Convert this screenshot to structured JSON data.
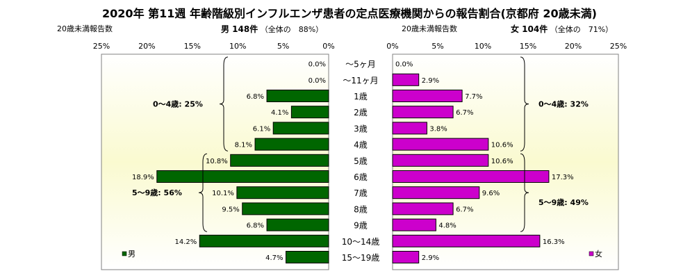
{
  "title": "2020年 第11週 年齢階級別インフルエンザ患者の定点医療機関からの報告割合(京都府 20歳未満)",
  "headers": {
    "male_left": "20歳未満報告数",
    "male_summary": "男 148件",
    "male_share": "（全体の　88%）",
    "female_left": "20歳未満報告数",
    "female_summary": "女 104件",
    "female_share": "（全体の　71%）"
  },
  "colors": {
    "male": "#006600",
    "female": "#cc00cc",
    "panel_bg": "#fbfbe2"
  },
  "chart_data": {
    "type": "bar",
    "orientation": "horizontal-pyramid",
    "unit": "%",
    "categories": [
      "～5ヶ月",
      "～11ヶ月",
      "1歳",
      "2歳",
      "3歳",
      "4歳",
      "5歳",
      "6歳",
      "7歳",
      "8歳",
      "9歳",
      "10～14歳",
      "15～19歳"
    ],
    "series": [
      {
        "name": "男",
        "values": [
          0.0,
          0.0,
          6.8,
          4.1,
          6.1,
          8.1,
          10.8,
          18.9,
          10.1,
          9.5,
          6.8,
          14.2,
          4.7
        ],
        "labels": [
          "0.0%",
          "0.0%",
          "6.8%",
          "4.1%",
          "6.1%",
          "8.1%",
          "10.8%",
          "18.9%",
          "10.1%",
          "9.5%",
          "6.8%",
          "14.2%",
          "4.7%"
        ]
      },
      {
        "name": "女",
        "values": [
          0.0,
          2.9,
          7.7,
          6.7,
          3.8,
          10.6,
          10.6,
          17.3,
          9.6,
          6.7,
          4.8,
          16.3,
          2.9
        ],
        "labels": [
          "0.0%",
          "2.9%",
          "7.7%",
          "6.7%",
          "3.8%",
          "10.6%",
          "10.6%",
          "17.3%",
          "9.6%",
          "6.7%",
          "4.8%",
          "16.3%",
          "2.9%"
        ]
      }
    ],
    "x_ticks": [
      "25%",
      "20%",
      "15%",
      "10%",
      "5%",
      "0%"
    ],
    "x_ticks_right": [
      "0%",
      "5%",
      "10%",
      "15%",
      "20%",
      "25%"
    ],
    "xlim": [
      0,
      25
    ],
    "group_annotations": {
      "male": [
        "0～4歳: 25%",
        "5～9歳: 56%"
      ],
      "female": [
        "0～4歳: 32%",
        "5～9歳: 49%"
      ]
    },
    "legend": {
      "male": "男",
      "female": "女"
    }
  }
}
